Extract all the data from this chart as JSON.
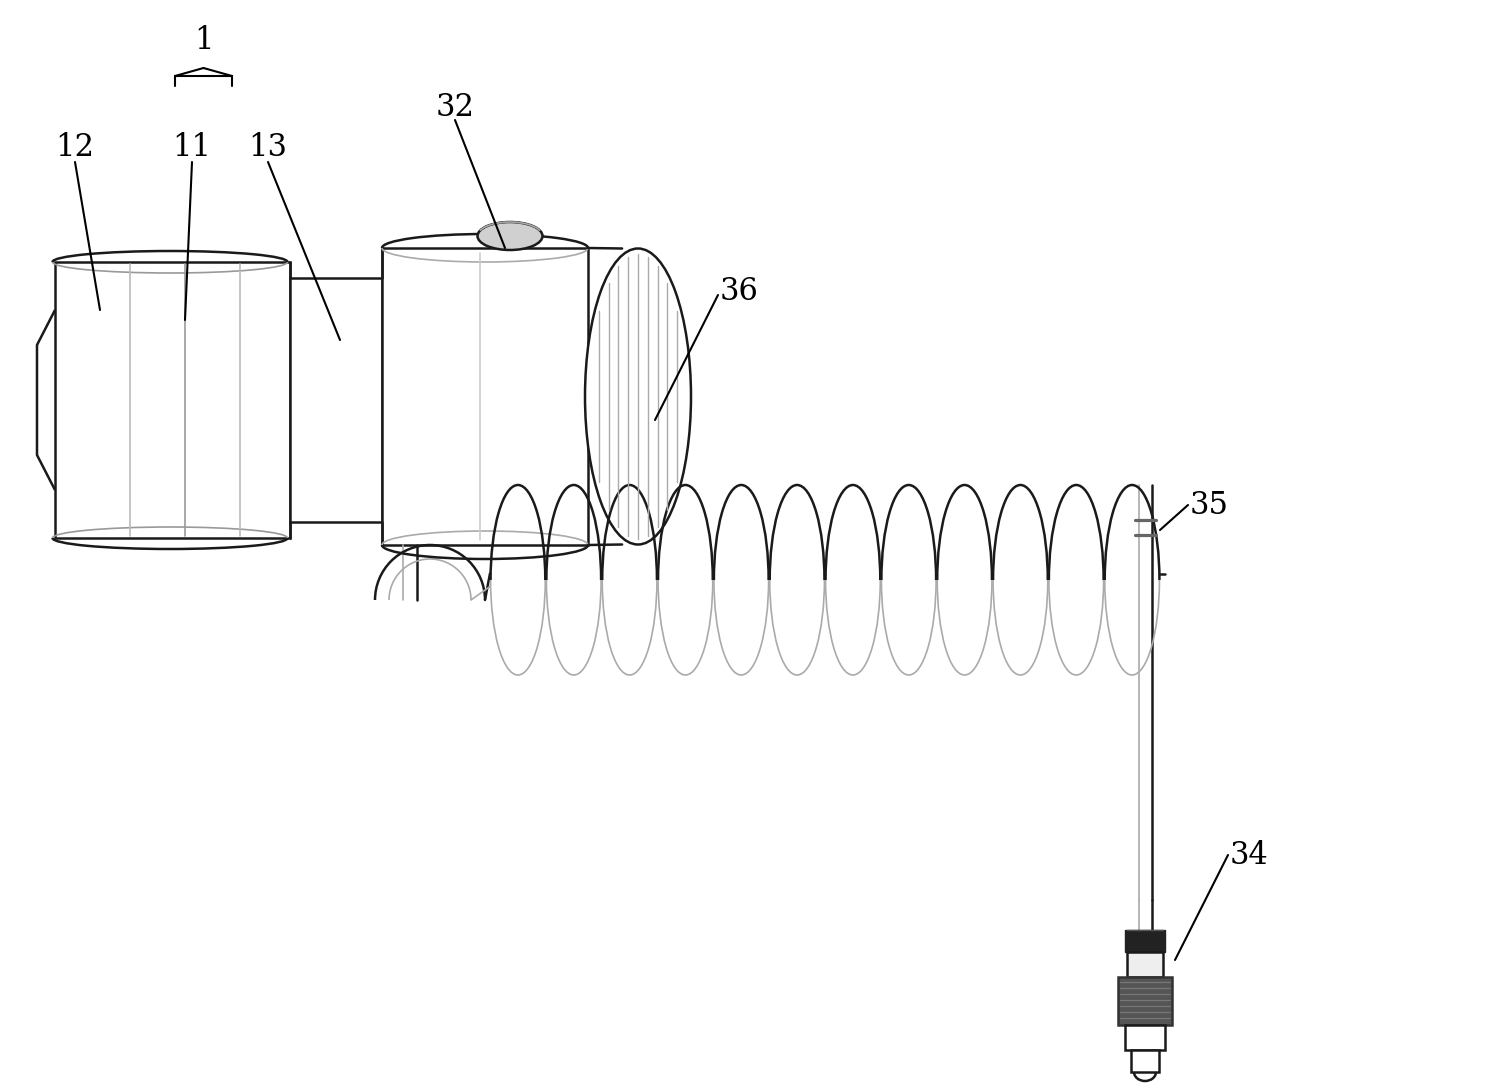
{
  "bg_color": "#ffffff",
  "line_color": "#1a1a1a",
  "gray1": "#aaaaaa",
  "gray2": "#888888",
  "gray3": "#cccccc",
  "dark": "#333333",
  "figsize": [
    14.85,
    10.92
  ],
  "dpi": 100,
  "label_fontsize": 22
}
